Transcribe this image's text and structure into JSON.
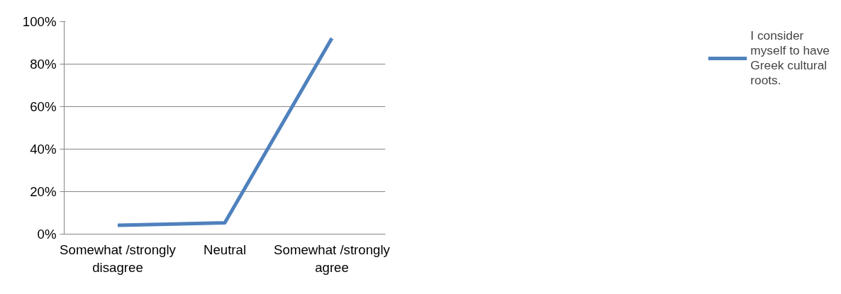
{
  "chart_data": {
    "type": "line",
    "categories": [
      "Somewhat /strongly disagree",
      "Neutral",
      "Somewhat /strongly agree"
    ],
    "series": [
      {
        "name": "I consider myself to have Greek cultural roots.",
        "color": "#4f81bd",
        "values": [
          4.2,
          5.3,
          92.2
        ]
      }
    ],
    "ylim": [
      0,
      100
    ],
    "yticks": [
      {
        "value": 0,
        "label": "0%"
      },
      {
        "value": 20,
        "label": "20%"
      },
      {
        "value": 40,
        "label": "40%"
      },
      {
        "value": 60,
        "label": "60%"
      },
      {
        "value": 80,
        "label": "80%"
      },
      {
        "value": 100,
        "label": "100%"
      }
    ],
    "grid": "y",
    "legend": "right",
    "marker": "none",
    "line_style": "solid"
  }
}
